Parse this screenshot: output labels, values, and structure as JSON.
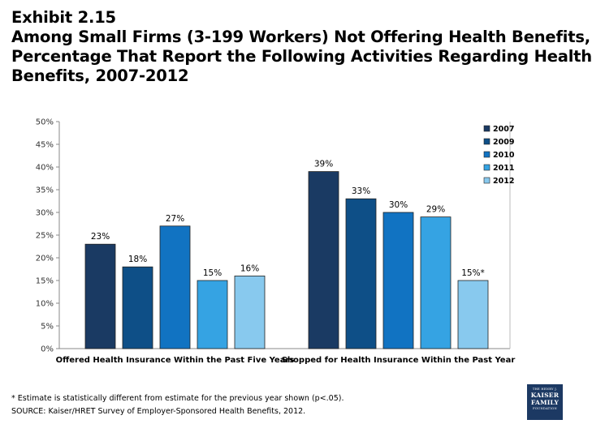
{
  "title_lines": [
    "Exhibit 2.15",
    "Among Small Firms (3-199 Workers) Not Offering Health Benefits,",
    "Percentage That Report the Following Activities Regarding Health",
    "Benefits, 2007-2012"
  ],
  "chart_data": {
    "type": "bar",
    "categories": [
      "Offered Health Insurance Within the Past Five Years",
      "Shopped for Health Insurance Within the Past Year"
    ],
    "series": [
      {
        "name": "2007",
        "color": "#1a3a63",
        "values": [
          23,
          39
        ],
        "labels": [
          "23%",
          "39%"
        ]
      },
      {
        "name": "2009",
        "color": "#0e4f87",
        "values": [
          18,
          33
        ],
        "labels": [
          "18%",
          "33%"
        ]
      },
      {
        "name": "2010",
        "color": "#1173c2",
        "values": [
          27,
          30
        ],
        "labels": [
          "27%",
          "30%"
        ]
      },
      {
        "name": "2011",
        "color": "#35a3e3",
        "values": [
          15,
          29
        ],
        "labels": [
          "15%",
          "29%"
        ]
      },
      {
        "name": "2012",
        "color": "#88c9ee",
        "values": [
          16,
          15
        ],
        "labels": [
          "16%",
          "15%*"
        ]
      }
    ],
    "ylim": [
      0,
      50
    ],
    "yticks": [
      "0%",
      "5%",
      "10%",
      "15%",
      "20%",
      "25%",
      "30%",
      "35%",
      "40%",
      "45%",
      "50%"
    ],
    "legend_position": "top-right",
    "grid": false
  },
  "footnote": {
    "note": "* Estimate is statistically different from estimate for the previous year shown (p<.05).",
    "source": "SOURCE: Kaiser/HRET Survey of Employer-Sponsored Health Benefits, 2012."
  },
  "logo": {
    "line1": "THE HENRY J.",
    "line2": "KAISER",
    "line3": "FAMILY",
    "line4": "FOUNDATION"
  }
}
